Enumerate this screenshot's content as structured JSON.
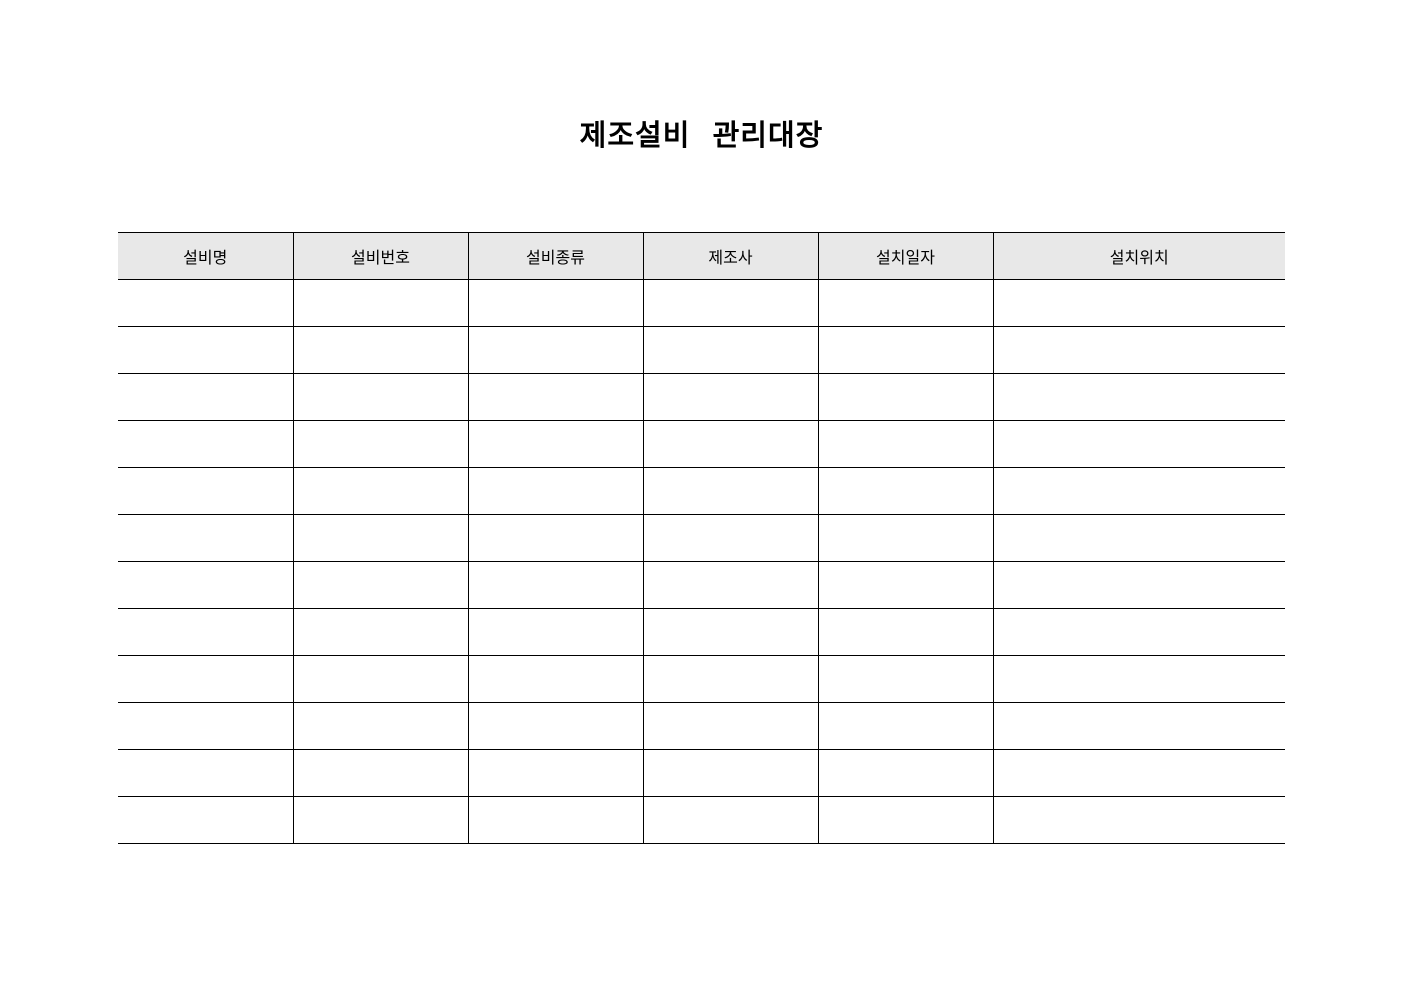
{
  "title": "제조설비  관리대장",
  "columns": [
    "설비명",
    "설비번호",
    "설비종류",
    "제조사",
    "설치일자",
    "설치위치"
  ],
  "row_count": 12,
  "colors": {
    "header_bg": "#e8e8e8",
    "border": "#000000"
  }
}
